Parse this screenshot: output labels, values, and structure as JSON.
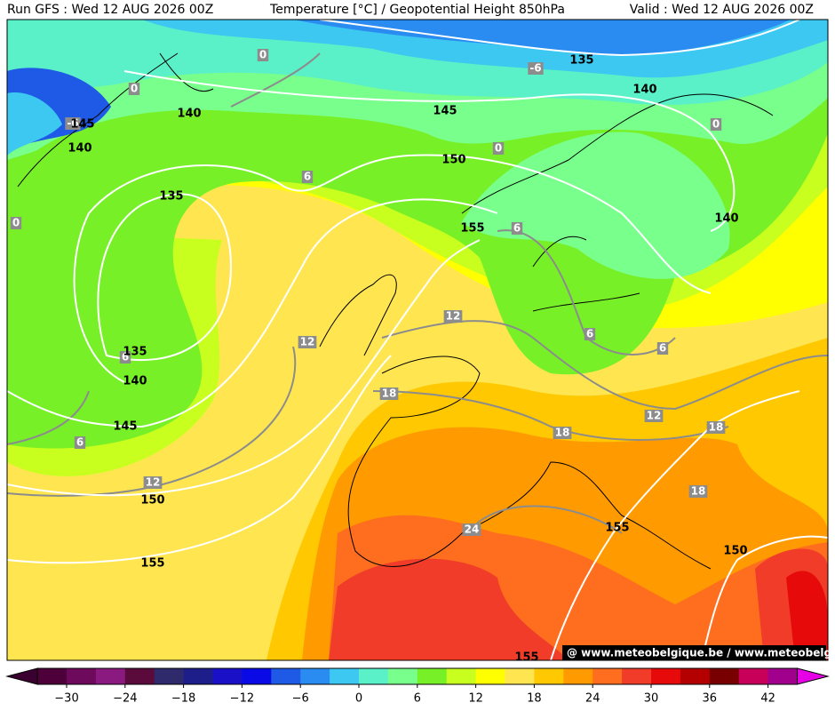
{
  "header": {
    "left": "Run GFS : Wed 12 AUG 2026 00Z",
    "center": "Temperature [°C] / Geopotential Height 850hPa",
    "right": "Valid : Wed 12 AUG 2026 00Z"
  },
  "map": {
    "height_labels": [
      "135",
      "145",
      "140",
      "140",
      "145",
      "140",
      "150",
      "135",
      "140",
      "155",
      "135",
      "140",
      "145",
      "150",
      "155",
      "155",
      "150",
      "155"
    ],
    "temperature_labels": [
      "0",
      "-6",
      "0",
      "-6",
      "0",
      "0",
      "6",
      "6",
      "0",
      "12",
      "12",
      "6",
      "6",
      "6",
      "18",
      "12",
      "18",
      "18",
      "6",
      "12",
      "18",
      "24"
    ],
    "watermark": "@ www.meteobelgique.be / www.meteobelgique.be"
  },
  "colorbar": {
    "labels": [
      "−30",
      "−24",
      "−18",
      "−12",
      "−6",
      "0",
      "6",
      "12",
      "18",
      "24",
      "30",
      "36",
      "42"
    ]
  }
}
